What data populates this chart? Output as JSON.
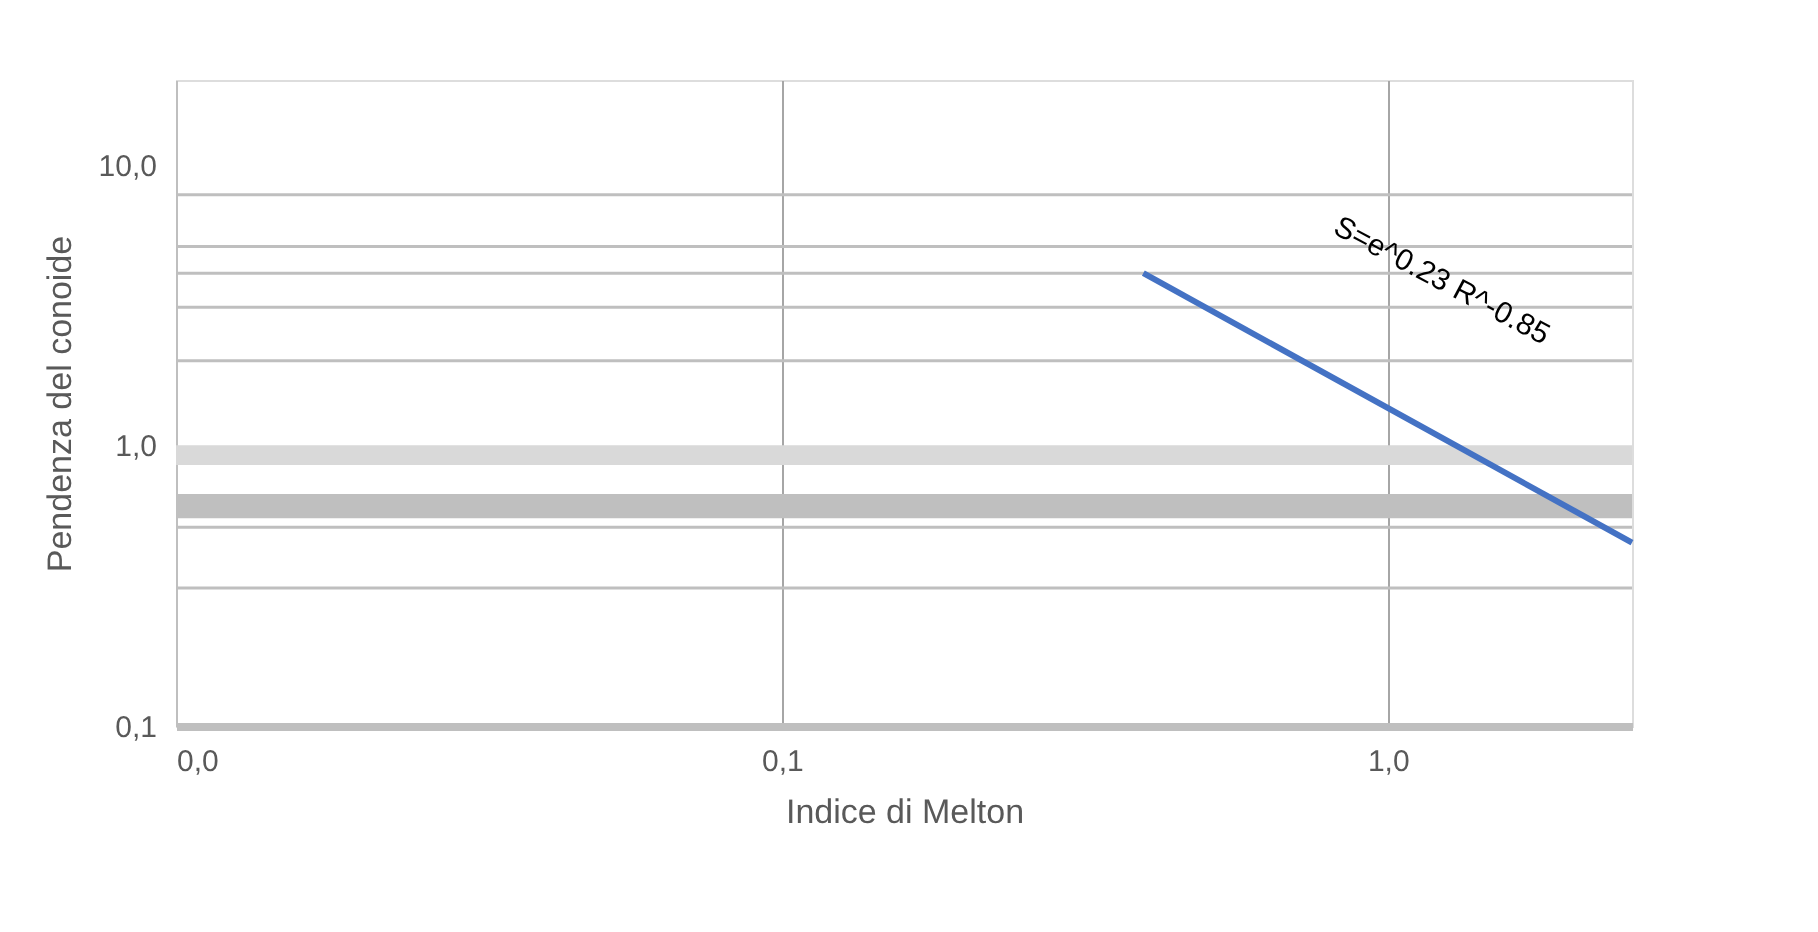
{
  "chart_data": {
    "type": "line",
    "xlabel": "Indice di Melton",
    "ylabel": "Pendenza del conoide",
    "x": [
      0.395,
      2.53
    ],
    "series": [
      {
        "color": "#4472c4",
        "values": [
          4.1,
          0.45
        ]
      }
    ],
    "log": "xy",
    "xlim": [
      0.01,
      2.53
    ],
    "ylim": [
      0.1,
      20
    ],
    "xticks": [
      {
        "value": 0.01,
        "label": "0,0"
      },
      {
        "value": 0.1,
        "label": "0,1"
      },
      {
        "value": 1,
        "label": "1,0"
      }
    ],
    "yticks": [
      {
        "value": 0.1,
        "label": "0,1"
      },
      {
        "value": 1,
        "label": "1,0"
      },
      {
        "value": 10,
        "label": "10,0"
      }
    ],
    "grid": "x",
    "ref_lines": [
      {
        "axis": "y",
        "value": 7.8,
        "label": null,
        "color": "#bfbfbf"
      },
      {
        "axis": "y",
        "value": 5.1,
        "label": null,
        "color": "#bfbfbf"
      },
      {
        "axis": "y",
        "value": 4.1,
        "label": null,
        "color": "#bfbfbf"
      },
      {
        "axis": "y",
        "value": 3.1,
        "label": null,
        "color": "#bfbfbf"
      },
      {
        "axis": "y",
        "value": 2.0,
        "label": null,
        "color": "#bfbfbf"
      },
      {
        "axis": "y",
        "value": 0.51,
        "label": null,
        "color": "#bfbfbf"
      },
      {
        "axis": "y",
        "value": 0.31,
        "label": null,
        "color": "#bfbfbf"
      }
    ],
    "bands": [
      {
        "axis": "y",
        "from": 0.85,
        "to": 1.0,
        "label": null,
        "color": "#d9d9d9"
      },
      {
        "axis": "y",
        "from": 0.55,
        "to": 0.67,
        "label": null,
        "color": "#bfbfbf"
      }
    ],
    "annotations": [
      "S=e^0.23 R^-0.85"
    ],
    "legend": false
  }
}
